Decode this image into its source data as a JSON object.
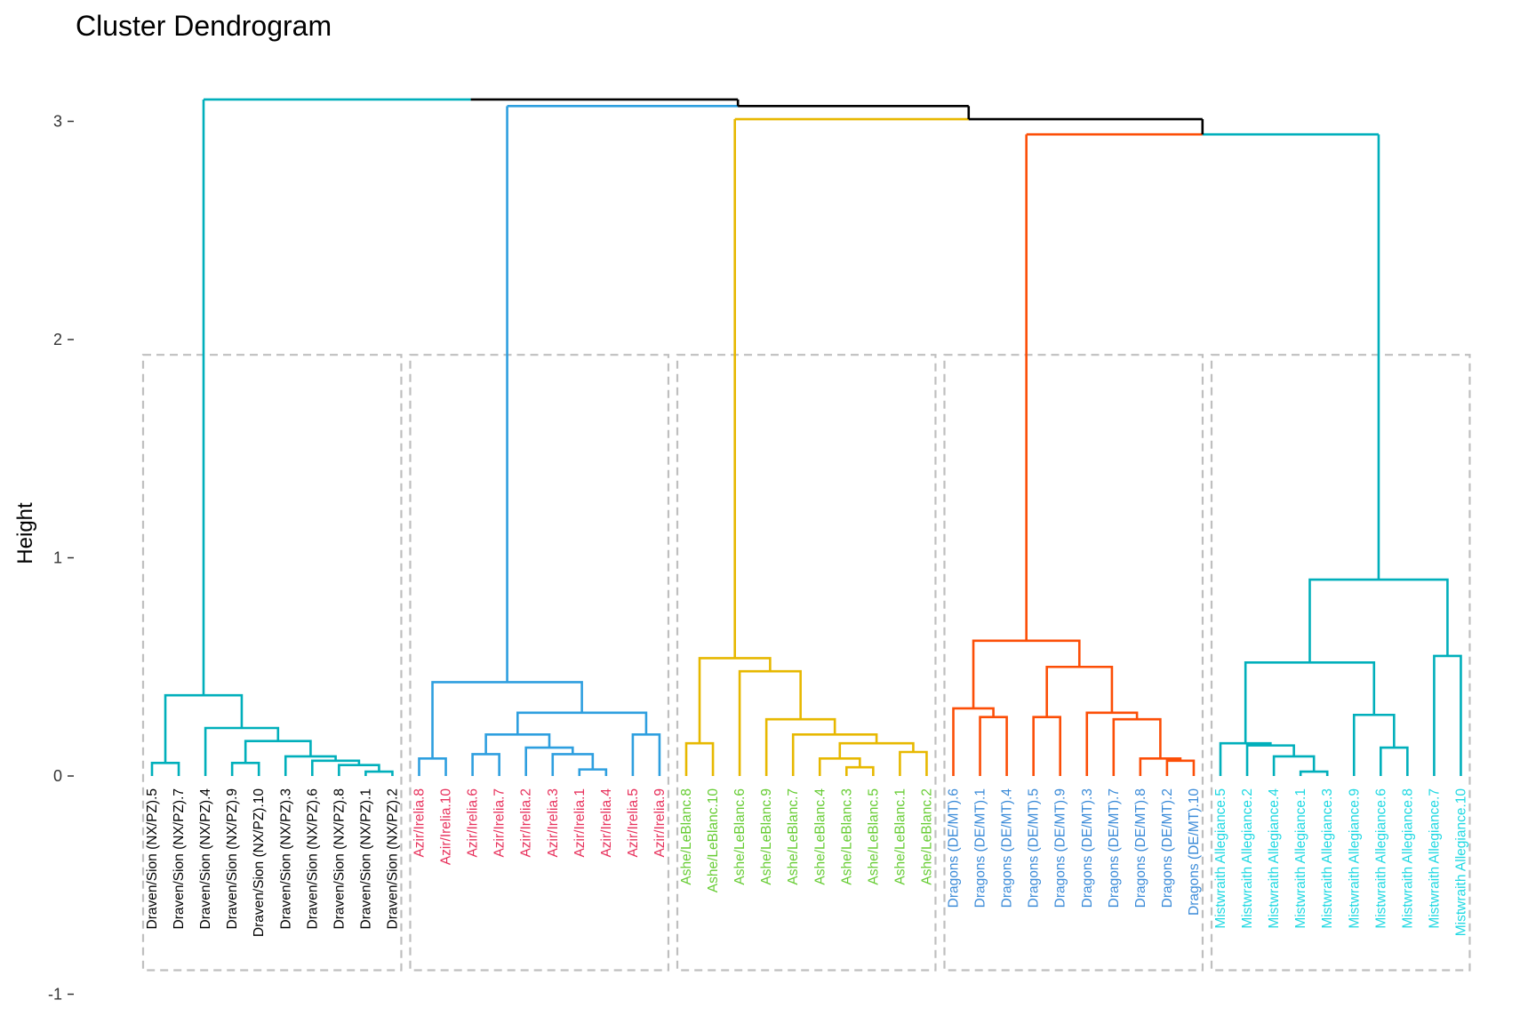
{
  "chart_data": {
    "type": "dendrogram",
    "title": "Cluster Dendrogram",
    "xlabel": "",
    "ylabel": "Height",
    "ylim": [
      -1,
      3.2
    ],
    "yticks": [
      -1,
      0,
      1,
      2,
      3
    ],
    "grid": false,
    "link_color_top": "#000000",
    "box_color": "#bfbfbf",
    "clusters": [
      {
        "color": "#00AFBB",
        "label_color": "#000000",
        "merge_height": 3.1,
        "labels": [
          "Draven/Sion (NX/PZ).5",
          "Draven/Sion (NX/PZ).7",
          "Draven/Sion (NX/PZ).4",
          "Draven/Sion (NX/PZ).9",
          "Draven/Sion (NX/PZ).10",
          "Draven/Sion (NX/PZ).3",
          "Draven/Sion (NX/PZ).6",
          "Draven/Sion (NX/PZ).8",
          "Draven/Sion (NX/PZ).1",
          "Draven/Sion (NX/PZ).2"
        ],
        "tree": [
          [
            0,
            1,
            0.06
          ],
          [
            3,
            4,
            0.06
          ],
          [
            8,
            9,
            0.02
          ],
          [
            7,
            12,
            0.05
          ],
          [
            6,
            13,
            0.07
          ],
          [
            5,
            14,
            0.09
          ],
          [
            11,
            15,
            0.16
          ],
          [
            2,
            16,
            0.22
          ],
          [
            10,
            17,
            0.37
          ]
        ]
      },
      {
        "color": "#2E9FDF",
        "label_color": "#E7305B",
        "merge_height": 3.07,
        "labels": [
          "Azir/Irelia.8",
          "Azir/Irelia.10",
          "Azir/Irelia.6",
          "Azir/Irelia.7",
          "Azir/Irelia.2",
          "Azir/Irelia.3",
          "Azir/Irelia.1",
          "Azir/Irelia.4",
          "Azir/Irelia.5",
          "Azir/Irelia.9"
        ],
        "tree": [
          [
            0,
            1,
            0.08
          ],
          [
            2,
            3,
            0.1
          ],
          [
            6,
            7,
            0.03
          ],
          [
            5,
            12,
            0.1
          ],
          [
            4,
            13,
            0.13
          ],
          [
            11,
            14,
            0.19
          ],
          [
            8,
            9,
            0.19
          ],
          [
            15,
            16,
            0.29
          ],
          [
            10,
            17,
            0.43
          ]
        ]
      },
      {
        "color": "#E7B800",
        "label_color": "#66CC33",
        "merge_height": 3.01,
        "labels": [
          "Ashe/LeBlanc.8",
          "Ashe/LeBlanc.10",
          "Ashe/LeBlanc.6",
          "Ashe/LeBlanc.9",
          "Ashe/LeBlanc.7",
          "Ashe/LeBlanc.4",
          "Ashe/LeBlanc.3",
          "Ashe/LeBlanc.5",
          "Ashe/LeBlanc.1",
          "Ashe/LeBlanc.2"
        ],
        "tree": [
          [
            0,
            1,
            0.15
          ],
          [
            6,
            7,
            0.04
          ],
          [
            5,
            11,
            0.08
          ],
          [
            8,
            9,
            0.11
          ],
          [
            12,
            13,
            0.15
          ],
          [
            4,
            14,
            0.19
          ],
          [
            3,
            15,
            0.26
          ],
          [
            2,
            16,
            0.48
          ],
          [
            10,
            17,
            0.54
          ]
        ]
      },
      {
        "color": "#FC4E07",
        "label_color": "#3B8BD8",
        "merge_height": 2.94,
        "labels": [
          "Dragons (DE/MT).6",
          "Dragons (DE/MT).1",
          "Dragons (DE/MT).4",
          "Dragons (DE/MT).5",
          "Dragons (DE/MT).9",
          "Dragons (DE/MT).3",
          "Dragons (DE/MT).7",
          "Dragons (DE/MT).8",
          "Dragons (DE/MT).2",
          "Dragons (DE/MT).10"
        ],
        "tree": [
          [
            1,
            2,
            0.27
          ],
          [
            0,
            10,
            0.31
          ],
          [
            3,
            4,
            0.27
          ],
          [
            8,
            9,
            0.07
          ],
          [
            7,
            13,
            0.08
          ],
          [
            6,
            14,
            0.26
          ],
          [
            5,
            15,
            0.29
          ],
          [
            12,
            16,
            0.5
          ],
          [
            11,
            17,
            0.62
          ]
        ]
      },
      {
        "color": "#00AFBB",
        "label_color": "#1ED8E2",
        "merge_height": 2.94,
        "labels": [
          "Mistwraith Allegiance.5",
          "Mistwraith Allegiance.2",
          "Mistwraith Allegiance.4",
          "Mistwraith Allegiance.1",
          "Mistwraith Allegiance.3",
          "Mistwraith Allegiance.9",
          "Mistwraith Allegiance.6",
          "Mistwraith Allegiance.8",
          "Mistwraith Allegiance.7",
          "Mistwraith Allegiance.10"
        ],
        "tree": [
          [
            3,
            4,
            0.02
          ],
          [
            2,
            10,
            0.09
          ],
          [
            1,
            11,
            0.14
          ],
          [
            0,
            12,
            0.15
          ],
          [
            6,
            7,
            0.13
          ],
          [
            5,
            14,
            0.28
          ],
          [
            13,
            15,
            0.52
          ],
          [
            8,
            9,
            0.55
          ],
          [
            16,
            17,
            0.9
          ]
        ]
      }
    ],
    "top_merges": [
      {
        "left": 3,
        "right": 4,
        "height": 2.94
      },
      {
        "left": 2,
        "right": "prev",
        "height": 3.01
      },
      {
        "left": 1,
        "right": "prev",
        "height": 3.07
      },
      {
        "left": 0,
        "right": "prev",
        "height": 3.1
      }
    ]
  }
}
